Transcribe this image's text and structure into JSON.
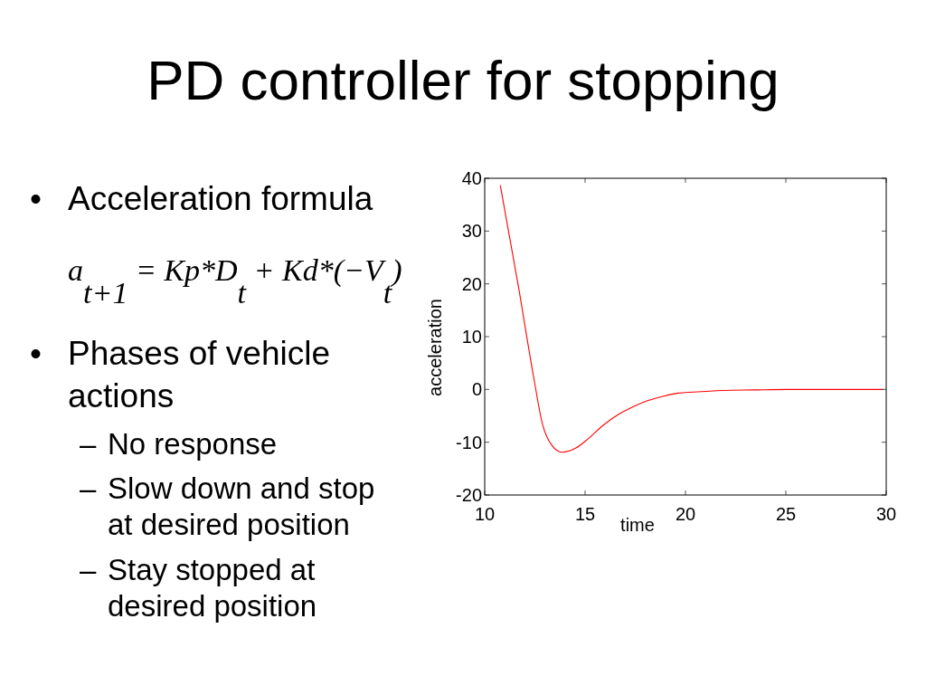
{
  "chart_data": {
    "type": "line",
    "title": "PD controller for stopping",
    "xlabel": "time",
    "ylabel": "acceleration",
    "annotations": [
      "• Acceleration formula",
      "a$_{t+1}$ = Kp*D$_{t}$ + Kd*(−V$_{t}$)",
      "• Phases of vehicle actions",
      "– No response",
      "– Slow down and stop at desired position",
      "– Stay stopped at desired position"
    ],
    "series": [
      {
        "color": "#ff0000",
        "x": [
          10.78,
          11.68,
          12.43,
          12.88,
          13.33,
          13.86,
          14.54,
          15.14,
          15.9,
          16.64,
          17.39,
          18.14,
          18.89,
          19.64,
          20.39,
          21.89,
          23.39,
          25,
          27,
          29.85
        ],
        "values": [
          38.6,
          19.5,
          2.5,
          -6.6,
          -10.5,
          -11.9,
          -11.1,
          -9.4,
          -6.8,
          -4.8,
          -3.3,
          -2.1,
          -1.3,
          -0.7,
          -0.5,
          -0.2,
          -0.1,
          0,
          0,
          0
        ]
      }
    ],
    "xlim": [
      10,
      30
    ],
    "ylim": [
      -20,
      40
    ],
    "xticks": [
      10,
      15,
      20,
      25,
      30
    ],
    "yticks": [
      -20,
      -10,
      0,
      10,
      20,
      30,
      40
    ]
  }
}
